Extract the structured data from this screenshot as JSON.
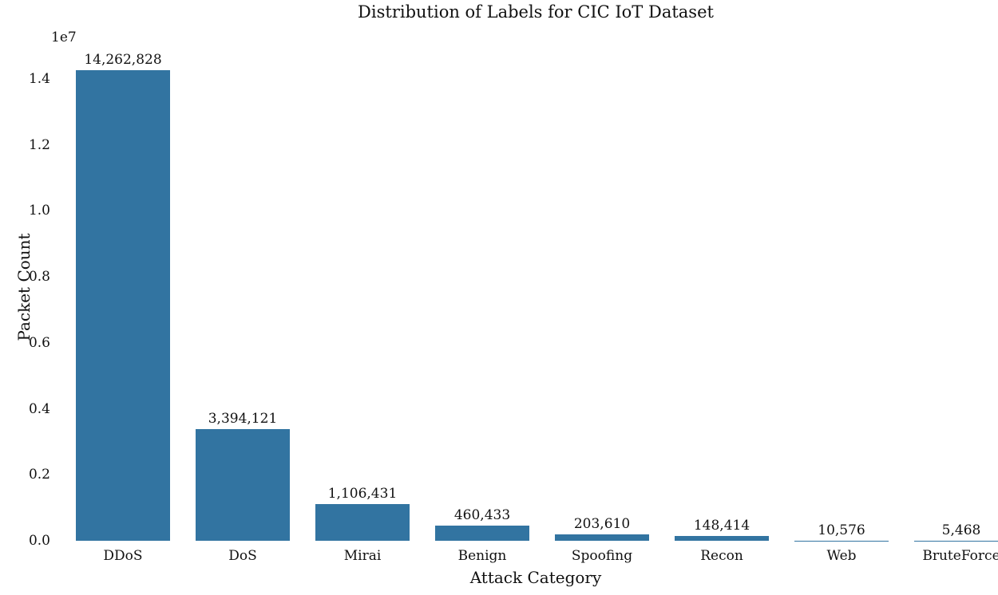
{
  "chart_data": {
    "type": "bar",
    "title": "Distribution of Labels for CIC IoT Dataset",
    "xlabel": "Attack Category",
    "ylabel": "Packet Count",
    "y_offset_text": "1e7",
    "categories": [
      "DDoS",
      "DoS",
      "Mirai",
      "Benign",
      "Spoofing",
      "Recon",
      "Web",
      "BruteForce"
    ],
    "values": [
      14262828,
      3394121,
      1106431,
      460433,
      203610,
      148414,
      10576,
      5468
    ],
    "value_labels": [
      "14,262,828",
      "3,394,121",
      "1,106,431",
      "460,433",
      "203,610",
      "148,414",
      "10,576",
      "5,468"
    ],
    "ytick_labels": [
      "0.0",
      "0.2",
      "0.4",
      "0.6",
      "0.8",
      "1.0",
      "1.2",
      "1.4"
    ],
    "ylim": [
      0,
      14940000
    ],
    "bar_color": "#3274a1",
    "text_color": "#111111",
    "grid": false,
    "legend": null
  }
}
